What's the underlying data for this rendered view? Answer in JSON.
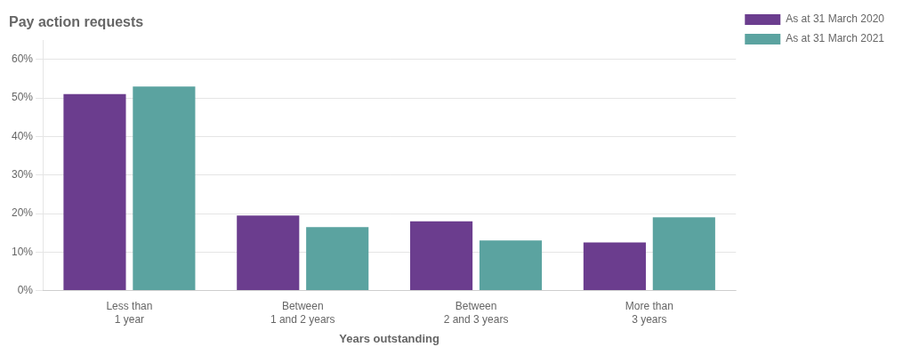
{
  "chart_data": {
    "type": "bar",
    "title": "Pay action requests",
    "xlabel": "Years outstanding",
    "categories": [
      "Less than\n1 year",
      "Between\n1 and 2 years",
      "Between\n2 and 3 years",
      "More than\n3 years"
    ],
    "series": [
      {
        "name": "As at 31 March 2020",
        "color": "#6b3d8e",
        "values": [
          51,
          19.5,
          18,
          12.5
        ]
      },
      {
        "name": "As at 31 March 2021",
        "color": "#5ba3a0",
        "values": [
          53,
          16.5,
          13,
          19
        ]
      }
    ],
    "ylim": [
      0,
      65
    ],
    "yticks": [
      {
        "value": 0,
        "label": "0%"
      },
      {
        "value": 10,
        "label": "10%"
      },
      {
        "value": 20,
        "label": "20%"
      },
      {
        "value": 30,
        "label": "30%"
      },
      {
        "value": 40,
        "label": "40%"
      },
      {
        "value": 50,
        "label": "50%"
      },
      {
        "value": 60,
        "label": "60%"
      }
    ],
    "grid": true,
    "legend": "right"
  }
}
